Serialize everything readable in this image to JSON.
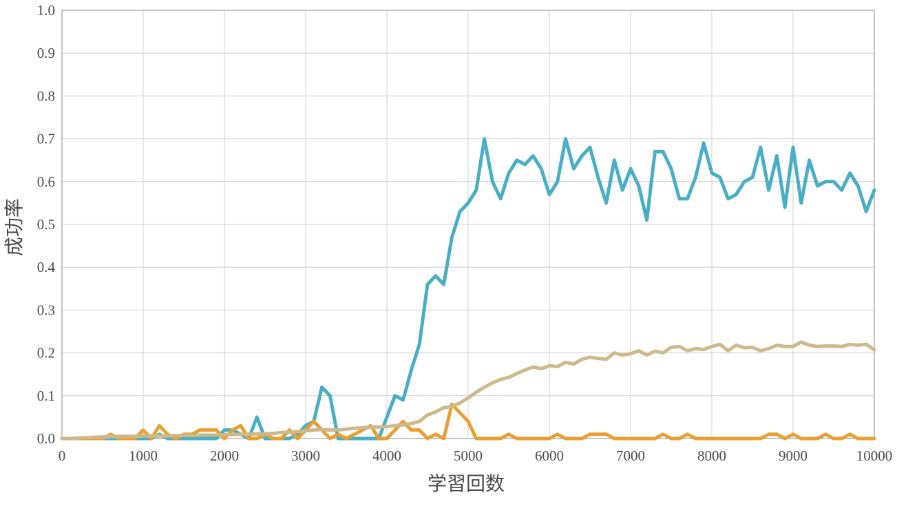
{
  "chart_data": {
    "type": "line",
    "title": "",
    "xlabel": "学習回数",
    "ylabel": "成功率",
    "xlim": [
      0,
      10000
    ],
    "ylim": [
      0,
      1.0
    ],
    "grid": true,
    "legend": "none",
    "x_ticks": [
      "0",
      "1000",
      "2000",
      "3000",
      "4000",
      "5000",
      "6000",
      "7000",
      "8000",
      "9000",
      "10000"
    ],
    "y_ticks": [
      "0.0",
      "0.1",
      "0.2",
      "0.3",
      "0.4",
      "0.5",
      "0.6",
      "0.7",
      "0.8",
      "0.9",
      "1.0"
    ],
    "series": [
      {
        "color": "#4aaec4",
        "x": [
          0,
          100,
          200,
          300,
          400,
          500,
          600,
          700,
          800,
          900,
          1000,
          1100,
          1200,
          1300,
          1400,
          1500,
          1600,
          1700,
          1800,
          1900,
          2000,
          2100,
          2200,
          2300,
          2400,
          2500,
          2600,
          2700,
          2800,
          2900,
          3000,
          3100,
          3200,
          3300,
          3400,
          3500,
          3600,
          3700,
          3800,
          3900,
          4000,
          4100,
          4200,
          4300,
          4400,
          4500,
          4600,
          4700,
          4800,
          4900,
          5000,
          5100,
          5200,
          5300,
          5400,
          5500,
          5600,
          5700,
          5800,
          5900,
          6000,
          6100,
          6200,
          6300,
          6400,
          6500,
          6600,
          6700,
          6800,
          6900,
          7000,
          7100,
          7200,
          7300,
          7400,
          7500,
          7600,
          7700,
          7800,
          7900,
          8000,
          8100,
          8200,
          8300,
          8400,
          8500,
          8600,
          8700,
          8800,
          8900,
          9000,
          9100,
          9200,
          9300,
          9400,
          9500,
          9600,
          9700,
          9800,
          9900,
          10000
        ],
        "y": [
          0,
          0,
          0,
          0,
          0,
          0,
          0,
          0,
          0,
          0,
          0,
          0,
          0.01,
          0,
          0,
          0,
          0,
          0,
          0,
          0,
          0.02,
          0.02,
          0.01,
          0,
          0.05,
          0,
          0,
          0,
          0,
          0.01,
          0.03,
          0.04,
          0.12,
          0.1,
          0,
          0,
          0,
          0,
          0,
          0,
          0.05,
          0.1,
          0.09,
          0.16,
          0.22,
          0.36,
          0.38,
          0.36,
          0.47,
          0.53,
          0.55,
          0.58,
          0.7,
          0.6,
          0.56,
          0.62,
          0.65,
          0.64,
          0.66,
          0.63,
          0.57,
          0.6,
          0.7,
          0.63,
          0.66,
          0.68,
          0.61,
          0.55,
          0.65,
          0.58,
          0.63,
          0.59,
          0.51,
          0.67,
          0.67,
          0.63,
          0.56,
          0.56,
          0.61,
          0.69,
          0.62,
          0.61,
          0.56,
          0.57,
          0.6,
          0.61,
          0.68,
          0.58,
          0.66,
          0.54,
          0.68,
          0.55,
          0.65,
          0.59,
          0.6,
          0.6,
          0.58,
          0.62,
          0.59,
          0.53,
          0.58
        ]
      },
      {
        "color": "#e8a032",
        "x": [
          0,
          100,
          200,
          300,
          400,
          500,
          600,
          700,
          800,
          900,
          1000,
          1100,
          1200,
          1300,
          1400,
          1500,
          1600,
          1700,
          1800,
          1900,
          2000,
          2100,
          2200,
          2300,
          2400,
          2500,
          2600,
          2700,
          2800,
          2900,
          3000,
          3100,
          3200,
          3300,
          3400,
          3500,
          3600,
          3700,
          3800,
          3900,
          4000,
          4100,
          4200,
          4300,
          4400,
          4500,
          4600,
          4700,
          4800,
          4900,
          5000,
          5100,
          5200,
          5300,
          5400,
          5500,
          5600,
          5700,
          5800,
          5900,
          6000,
          6100,
          6200,
          6300,
          6400,
          6500,
          6600,
          6700,
          6800,
          6900,
          7000,
          7100,
          7200,
          7300,
          7400,
          7500,
          7600,
          7700,
          7800,
          7900,
          8000,
          8100,
          8200,
          8300,
          8400,
          8500,
          8600,
          8700,
          8800,
          8900,
          9000,
          9100,
          9200,
          9300,
          9400,
          9500,
          9600,
          9700,
          9800,
          9900,
          10000
        ],
        "y": [
          0,
          0,
          0,
          0,
          0,
          0,
          0.01,
          0,
          0,
          0,
          0.02,
          0,
          0.03,
          0.01,
          0,
          0.01,
          0.01,
          0.02,
          0.02,
          0.02,
          0,
          0.02,
          0.03,
          0,
          0,
          0.01,
          0,
          0,
          0.02,
          0,
          0.02,
          0.04,
          0.02,
          0,
          0.01,
          0,
          0.01,
          0.02,
          0.03,
          0,
          0,
          0.02,
          0.04,
          0.02,
          0.02,
          0,
          0.01,
          0,
          0.08,
          0.06,
          0.04,
          0,
          0,
          0,
          0,
          0.01,
          0,
          0,
          0,
          0,
          0,
          0.01,
          0,
          0,
          0,
          0.01,
          0.01,
          0.01,
          0,
          0,
          0,
          0,
          0,
          0,
          0.01,
          0,
          0,
          0.01,
          0,
          0,
          0,
          0,
          0,
          0,
          0,
          0,
          0,
          0.01,
          0.01,
          0,
          0.01,
          0,
          0,
          0,
          0.01,
          0,
          0,
          0.01,
          0,
          0,
          0
        ]
      },
      {
        "color": "#cdb98a",
        "x": [
          0,
          100,
          200,
          300,
          400,
          500,
          600,
          700,
          800,
          900,
          1000,
          1100,
          1200,
          1300,
          1400,
          1500,
          1600,
          1700,
          1800,
          1900,
          2000,
          2100,
          2200,
          2300,
          2400,
          2500,
          2600,
          2700,
          2800,
          2900,
          3000,
          3100,
          3200,
          3300,
          3400,
          3500,
          3600,
          3700,
          3800,
          3900,
          4000,
          4100,
          4200,
          4300,
          4400,
          4500,
          4600,
          4700,
          4800,
          4900,
          5000,
          5100,
          5200,
          5300,
          5400,
          5500,
          5600,
          5700,
          5800,
          5900,
          6000,
          6100,
          6200,
          6300,
          6400,
          6500,
          6600,
          6700,
          6800,
          6900,
          7000,
          7100,
          7200,
          7300,
          7400,
          7500,
          7600,
          7700,
          7800,
          7900,
          8000,
          8100,
          8200,
          8300,
          8400,
          8500,
          8600,
          8700,
          8800,
          8900,
          9000,
          9100,
          9200,
          9300,
          9400,
          9500,
          9600,
          9700,
          9800,
          9900,
          10000
        ],
        "y": [
          0,
          0,
          0.001,
          0.002,
          0.003,
          0.004,
          0.004,
          0.005,
          0.005,
          0.005,
          0.006,
          0.006,
          0.006,
          0.006,
          0.007,
          0.007,
          0.007,
          0.008,
          0.008,
          0.008,
          0.009,
          0.009,
          0.01,
          0.01,
          0.011,
          0.011,
          0.012,
          0.014,
          0.015,
          0.016,
          0.018,
          0.02,
          0.021,
          0.02,
          0.02,
          0.022,
          0.024,
          0.025,
          0.026,
          0.027,
          0.028,
          0.03,
          0.032,
          0.035,
          0.04,
          0.055,
          0.062,
          0.072,
          0.075,
          0.083,
          0.095,
          0.108,
          0.12,
          0.13,
          0.138,
          0.143,
          0.152,
          0.16,
          0.167,
          0.163,
          0.17,
          0.168,
          0.178,
          0.174,
          0.185,
          0.19,
          0.187,
          0.185,
          0.2,
          0.195,
          0.198,
          0.205,
          0.195,
          0.204,
          0.2,
          0.213,
          0.215,
          0.205,
          0.21,
          0.208,
          0.215,
          0.22,
          0.205,
          0.218,
          0.212,
          0.213,
          0.205,
          0.21,
          0.218,
          0.215,
          0.215,
          0.225,
          0.218,
          0.215,
          0.216,
          0.216,
          0.215,
          0.22,
          0.218,
          0.22,
          0.207
        ]
      }
    ]
  }
}
